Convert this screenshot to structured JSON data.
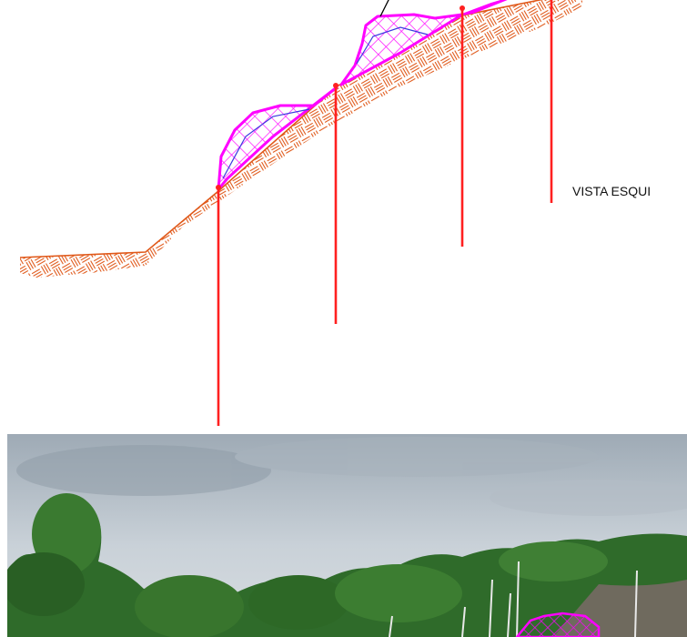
{
  "view_label": "VISTA ESQUI",
  "colors": {
    "soil_hatch": "#e0591a",
    "net_pink": "#ff00ff",
    "net_blue": "#3a3ae0",
    "anchor_red": "#ff2020",
    "leader_line": "#000000"
  },
  "photo": {
    "description_icon": "photo-of-slope-with-net",
    "sky_color": "#b8c2cb",
    "vegetation_color": "#2f6b2a"
  }
}
